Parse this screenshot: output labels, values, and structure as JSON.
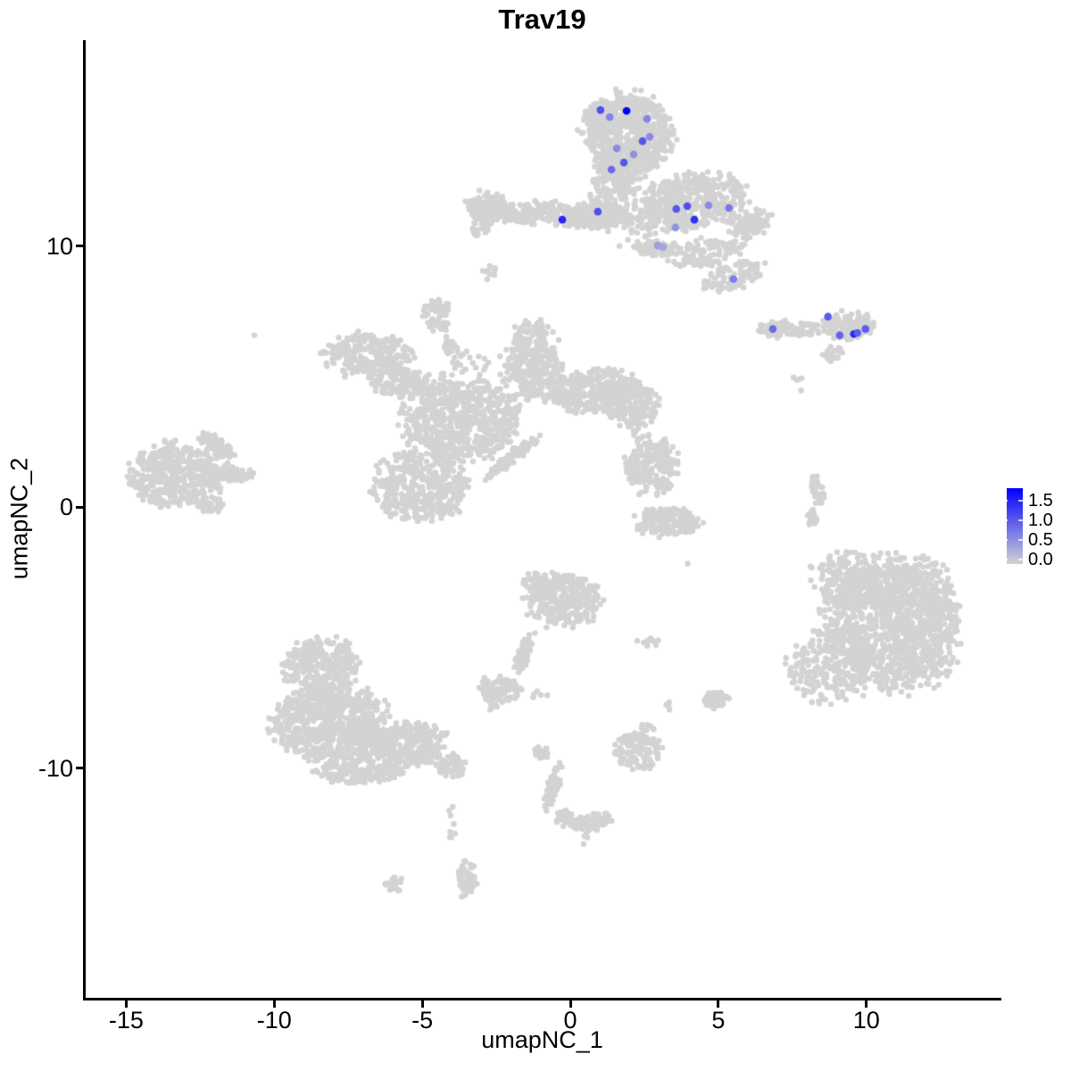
{
  "title": "Trav19",
  "x_axis": {
    "label": "umapNC_1",
    "ticks": [
      {
        "value": -15,
        "label": "-15"
      },
      {
        "value": -10,
        "label": "-10"
      },
      {
        "value": -5,
        "label": "-5"
      },
      {
        "value": 0,
        "label": "0"
      },
      {
        "value": 5,
        "label": "5"
      },
      {
        "value": 10,
        "label": "10"
      }
    ]
  },
  "y_axis": {
    "label": "umapNC_2",
    "ticks": [
      {
        "value": 10,
        "label": "10"
      },
      {
        "value": 0,
        "label": "0"
      },
      {
        "value": -10,
        "label": "-10"
      }
    ]
  },
  "legend": {
    "labels": [
      "1.5",
      "1.0",
      "0.5",
      "0.0"
    ],
    "color_high": "#0000FF",
    "color_low": "#D3D3D3"
  },
  "colors": {
    "background": "#FFFFFF",
    "points_base": "#D3D3D3",
    "axis": "#000000"
  },
  "chart_data": {
    "type": "scatter",
    "title": "Trav19",
    "xlabel": "umapNC_1",
    "ylabel": "umapNC_2",
    "xlim": [
      -16.4,
      14.5
    ],
    "ylim": [
      -18.8,
      17.9
    ],
    "expression_range": [
      0,
      1.6
    ],
    "point_radius_px": 3.2,
    "highlight_radius_px": 4.3,
    "grid": false,
    "legend_position": "right",
    "clusters": [
      {
        "name": "top-mushroom",
        "blobs": [
          [
            1.93,
            14.27,
            1.45,
            1.57,
            650,
            0
          ],
          [
            0.99,
            15.02,
            0.5,
            0.55,
            80,
            0
          ],
          [
            1.48,
            12.15,
            0.78,
            1.25,
            170,
            0
          ],
          [
            0.99,
            11.19,
            0.95,
            0.5,
            130,
            0
          ],
          [
            4.1,
            11.71,
            1.87,
            1.0,
            430,
            12
          ],
          [
            5.99,
            10.92,
            0.75,
            0.55,
            90,
            15
          ],
          [
            4.55,
            9.76,
            1.2,
            0.5,
            110,
            10
          ],
          [
            5.51,
            8.87,
            1.05,
            0.5,
            90,
            20
          ],
          [
            2.95,
            9.93,
            0.8,
            0.28,
            65,
            0
          ],
          [
            2.2,
            11.02,
            1.1,
            1.1,
            45,
            0
          ],
          [
            -1.42,
            11.3,
            1.8,
            0.42,
            210,
            0
          ],
          [
            -2.8,
            11.5,
            0.7,
            0.58,
            120,
            0
          ],
          [
            -3.04,
            10.78,
            0.32,
            0.5,
            35,
            0
          ],
          [
            -2.74,
            9.04,
            0.28,
            0.45,
            10,
            0
          ],
          [
            0.27,
            10.96,
            0.85,
            0.25,
            55,
            0
          ]
        ]
      },
      {
        "name": "right-island",
        "blobs": [
          [
            7.41,
            6.83,
            1.05,
            0.33,
            90,
            0
          ],
          [
            9.37,
            6.96,
            0.85,
            0.52,
            120,
            0
          ],
          [
            8.86,
            5.87,
            0.42,
            0.28,
            22,
            35
          ],
          [
            7.71,
            4.74,
            0.28,
            0.3,
            6,
            0
          ]
        ]
      },
      {
        "name": "central-complex",
        "blobs": [
          [
            -4.52,
            7.37,
            0.45,
            0.62,
            60,
            0
          ],
          [
            -4.01,
            6.04,
            0.22,
            0.85,
            30,
            20
          ],
          [
            -6.81,
            5.77,
            1.42,
            0.88,
            280,
            0
          ],
          [
            -5.69,
            4.78,
            1.0,
            0.55,
            140,
            0
          ],
          [
            -3.7,
            3.34,
            1.9,
            1.5,
            620,
            0
          ],
          [
            -1.23,
            5.6,
            0.9,
            1.45,
            290,
            0
          ],
          [
            0.63,
            4.44,
            1.5,
            0.8,
            290,
            12
          ],
          [
            2.08,
            4.03,
            0.9,
            0.85,
            190,
            0
          ],
          [
            -5.09,
            0.78,
            1.5,
            1.35,
            430,
            0
          ],
          [
            -1.96,
            1.91,
            1.15,
            0.2,
            85,
            42
          ],
          [
            -3.34,
            4.64,
            1.7,
            1.3,
            70,
            0
          ]
        ]
      },
      {
        "name": "far-left",
        "blobs": [
          [
            -13.31,
            1.23,
            1.6,
            1.2,
            430,
            0
          ],
          [
            -11.93,
            2.35,
            0.7,
            0.32,
            65,
            -35
          ],
          [
            -11.33,
            1.26,
            0.72,
            0.3,
            55,
            0
          ],
          [
            -12.14,
            0.07,
            0.4,
            0.3,
            40,
            0
          ],
          [
            -10.69,
            6.62,
            0.07,
            0.07,
            1,
            0
          ]
        ]
      },
      {
        "name": "mid-right",
        "blobs": [
          [
            2.26,
            3.14,
            0.28,
            0.55,
            13,
            0
          ],
          [
            2.77,
            1.6,
            0.85,
            1.1,
            200,
            0
          ],
          [
            3.28,
            -0.55,
            1.05,
            0.55,
            170,
            0
          ],
          [
            4.04,
            -2.18,
            0.08,
            0.08,
            1,
            0
          ]
        ]
      },
      {
        "name": "right-sliver",
        "blobs": [
          [
            8.34,
            0.65,
            0.2,
            0.62,
            40,
            12
          ],
          [
            8.16,
            -0.44,
            0.15,
            0.35,
            20,
            0
          ],
          [
            8.46,
            -2.73,
            0.65,
            0.85,
            9,
            0
          ]
        ]
      },
      {
        "name": "bottom-right-large",
        "blobs": [
          [
            10.87,
            -4.51,
            2.2,
            2.5,
            950,
            0
          ],
          [
            11.84,
            -4.16,
            1.25,
            2.2,
            300,
            0
          ],
          [
            9.52,
            -2.8,
            1.15,
            1.05,
            190,
            0
          ],
          [
            8.7,
            -6.08,
            1.3,
            1.35,
            240,
            0
          ],
          [
            9.37,
            -2.01,
            0.8,
            0.4,
            12,
            0
          ]
        ]
      },
      {
        "name": "center-lower",
        "blobs": [
          [
            -0.21,
            -3.55,
            1.3,
            1.0,
            310,
            0
          ],
          [
            -1.17,
            -2.87,
            0.4,
            0.35,
            45,
            0
          ],
          [
            -1.54,
            -5.53,
            0.22,
            0.8,
            55,
            -18
          ],
          [
            -2.38,
            -6.96,
            0.72,
            0.48,
            95,
            0
          ],
          [
            -2.59,
            -7.68,
            0.18,
            0.15,
            8,
            0
          ],
          [
            -1.05,
            -7.24,
            0.3,
            0.2,
            5,
            0
          ],
          [
            2.68,
            -5.15,
            0.6,
            0.18,
            9,
            0
          ],
          [
            3.34,
            -7.58,
            0.12,
            0.22,
            4,
            0
          ],
          [
            4.91,
            -7.37,
            0.42,
            0.33,
            55,
            0
          ]
        ]
      },
      {
        "name": "bottom-left-large",
        "blobs": [
          [
            -8.4,
            -6.04,
            1.25,
            1.0,
            280,
            0
          ],
          [
            -8.1,
            -8.26,
            1.85,
            1.45,
            720,
            0
          ],
          [
            -5.69,
            -9.15,
            1.55,
            0.85,
            340,
            8
          ],
          [
            -4.04,
            -9.9,
            0.5,
            0.5,
            60,
            0
          ],
          [
            -7.2,
            -10.17,
            1.45,
            0.4,
            140,
            0
          ],
          [
            -3.98,
            -12.15,
            0.2,
            0.75,
            8,
            0
          ],
          [
            -3.49,
            -14.27,
            0.32,
            0.8,
            55,
            0
          ]
        ]
      },
      {
        "name": "small-mid-bottom",
        "blobs": [
          [
            2.29,
            -9.32,
            0.8,
            0.68,
            130,
            0
          ],
          [
            2.62,
            -8.46,
            0.3,
            0.18,
            8,
            0
          ]
        ]
      },
      {
        "name": "bottom-chain",
        "blobs": [
          [
            -0.93,
            -9.39,
            0.28,
            0.22,
            25,
            0
          ],
          [
            -0.57,
            -10.68,
            0.2,
            0.85,
            65,
            -15
          ],
          [
            -0.18,
            -11.95,
            0.3,
            0.38,
            35,
            0
          ],
          [
            0.75,
            -12.08,
            0.68,
            0.3,
            75,
            12
          ],
          [
            -0.78,
            -11.64,
            0.06,
            0.06,
            1,
            0
          ],
          [
            0.48,
            -12.7,
            0.1,
            0.3,
            4,
            0
          ],
          [
            -5.96,
            -14.44,
            0.28,
            0.3,
            22,
            0
          ]
        ]
      }
    ],
    "highlighted_points": [
      {
        "x": 1.02,
        "y": 15.22,
        "value": 1.0
      },
      {
        "x": 1.33,
        "y": 14.95,
        "value": 0.6
      },
      {
        "x": 1.9,
        "y": 15.19,
        "value": 1.6
      },
      {
        "x": 2.59,
        "y": 14.88,
        "value": 0.6
      },
      {
        "x": 2.68,
        "y": 14.2,
        "value": 0.55
      },
      {
        "x": 2.44,
        "y": 14.03,
        "value": 0.95
      },
      {
        "x": 1.57,
        "y": 13.75,
        "value": 0.55
      },
      {
        "x": 2.14,
        "y": 13.52,
        "value": 0.5
      },
      {
        "x": 1.81,
        "y": 13.21,
        "value": 0.95
      },
      {
        "x": 1.39,
        "y": 12.94,
        "value": 0.8
      },
      {
        "x": 0.93,
        "y": 11.33,
        "value": 1.0
      },
      {
        "x": -0.27,
        "y": 11.02,
        "value": 1.3
      },
      {
        "x": 3.58,
        "y": 11.43,
        "value": 0.95
      },
      {
        "x": 3.95,
        "y": 11.54,
        "value": 1.0
      },
      {
        "x": 4.67,
        "y": 11.57,
        "value": 0.55
      },
      {
        "x": 5.36,
        "y": 11.47,
        "value": 0.7
      },
      {
        "x": 4.19,
        "y": 11.02,
        "value": 1.25
      },
      {
        "x": 3.55,
        "y": 10.72,
        "value": 0.5
      },
      {
        "x": 2.95,
        "y": 10.03,
        "value": 0.4
      },
      {
        "x": 3.13,
        "y": 9.97,
        "value": 0.35
      },
      {
        "x": 5.51,
        "y": 8.74,
        "value": 0.65
      },
      {
        "x": 8.7,
        "y": 7.3,
        "value": 0.9
      },
      {
        "x": 6.84,
        "y": 6.83,
        "value": 0.8
      },
      {
        "x": 9.1,
        "y": 6.59,
        "value": 0.85
      },
      {
        "x": 9.58,
        "y": 6.64,
        "value": 1.3
      },
      {
        "x": 9.7,
        "y": 6.68,
        "value": 0.9
      },
      {
        "x": 9.97,
        "y": 6.83,
        "value": 0.9
      }
    ]
  }
}
